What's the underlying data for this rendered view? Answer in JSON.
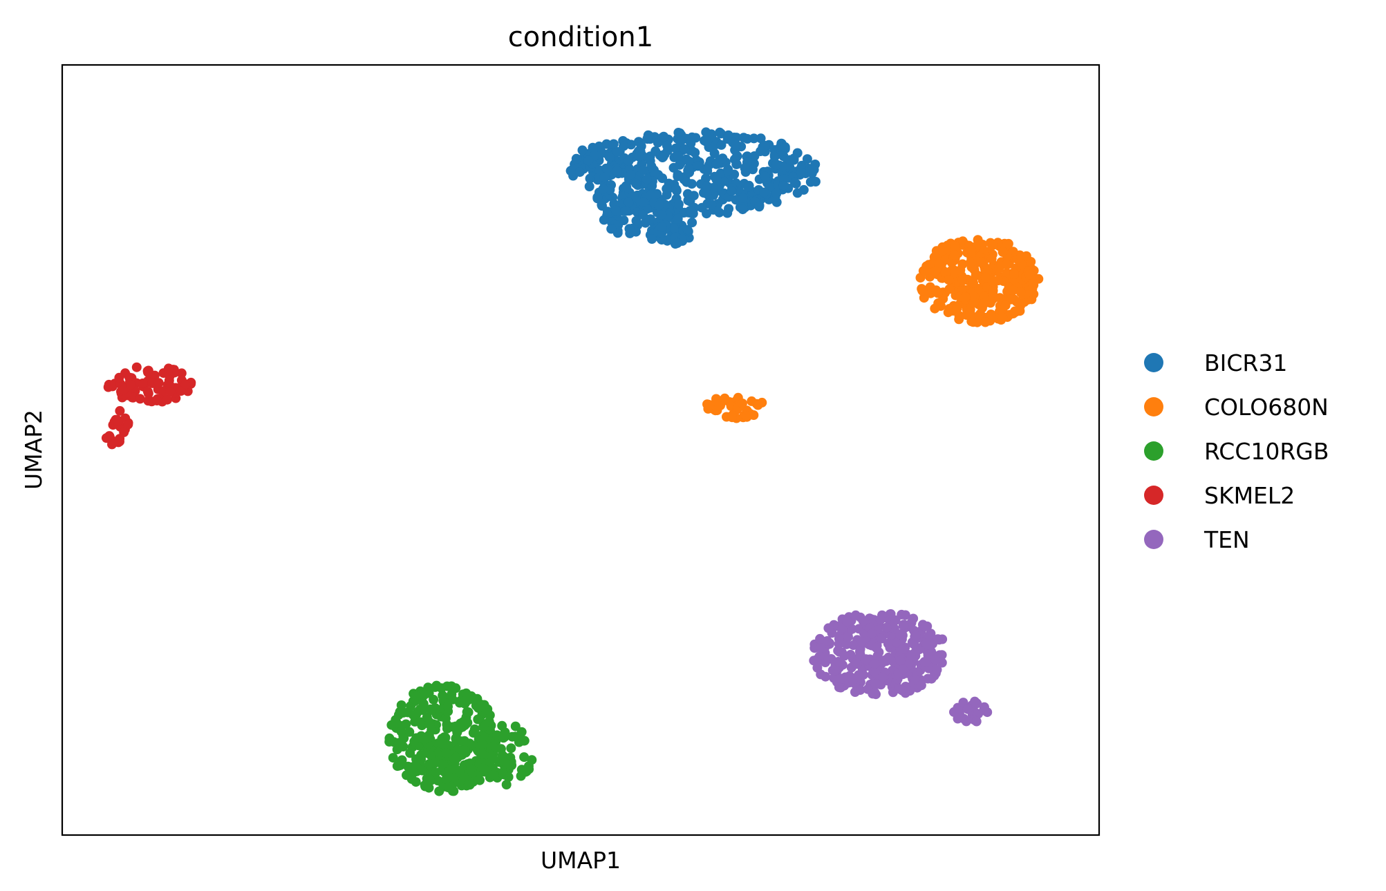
{
  "chart_data": {
    "type": "scatter",
    "title": "condition1",
    "xlabel": "UMAP1",
    "ylabel": "UMAP2",
    "xlim": [
      0,
      100
    ],
    "ylim": [
      0,
      100
    ],
    "grid": false,
    "legend_position": "right",
    "ticks": "none",
    "series": [
      {
        "name": "BICR31",
        "color": "#1f77b4",
        "clusters": [
          {
            "cx": 61,
            "cy": 86,
            "rx": 12,
            "ry": 5.5,
            "n": 420
          },
          {
            "cx": 54,
            "cy": 84,
            "rx": 3.5,
            "ry": 3,
            "n": 45
          },
          {
            "cx": 57,
            "cy": 80,
            "rx": 5,
            "ry": 2.6,
            "n": 70
          },
          {
            "cx": 58.6,
            "cy": 78,
            "rx": 2,
            "ry": 1.3,
            "n": 30
          },
          {
            "cx": 51,
            "cy": 88,
            "rx": 1.5,
            "ry": 1.3,
            "n": 14
          }
        ]
      },
      {
        "name": "COLO680N",
        "color": "#ff7f0e",
        "clusters": [
          {
            "cx": 88.4,
            "cy": 72,
            "rx": 5.8,
            "ry": 5.5,
            "n": 330
          },
          {
            "cx": 64.9,
            "cy": 55.7,
            "rx": 3,
            "ry": 1.6,
            "n": 40
          }
        ]
      },
      {
        "name": "RCC10RGB",
        "color": "#2ca02c",
        "clusters": [
          {
            "cx": 36.7,
            "cy": 12.5,
            "rx": 5.2,
            "ry": 7,
            "n": 300
          },
          {
            "cx": 42.8,
            "cy": 10.5,
            "rx": 2.6,
            "ry": 4,
            "n": 55
          },
          {
            "cx": 39.4,
            "cy": 9,
            "rx": 4,
            "ry": 2.2,
            "n": 50
          }
        ]
      },
      {
        "name": "SKMEL2",
        "color": "#d62728",
        "clusters": [
          {
            "cx": 8.3,
            "cy": 58.5,
            "rx": 4.2,
            "ry": 2.4,
            "n": 75
          },
          {
            "cx": 5.6,
            "cy": 53.5,
            "rx": 1,
            "ry": 1.6,
            "n": 14
          },
          {
            "cx": 4.9,
            "cy": 51.5,
            "rx": 0.8,
            "ry": 0.8,
            "n": 9
          }
        ]
      },
      {
        "name": "TEN",
        "color": "#9467bd",
        "clusters": [
          {
            "cx": 78.8,
            "cy": 23.5,
            "rx": 6.5,
            "ry": 5.5,
            "n": 320
          },
          {
            "cx": 87.5,
            "cy": 16,
            "rx": 1.8,
            "ry": 1.4,
            "n": 25
          }
        ]
      }
    ]
  }
}
